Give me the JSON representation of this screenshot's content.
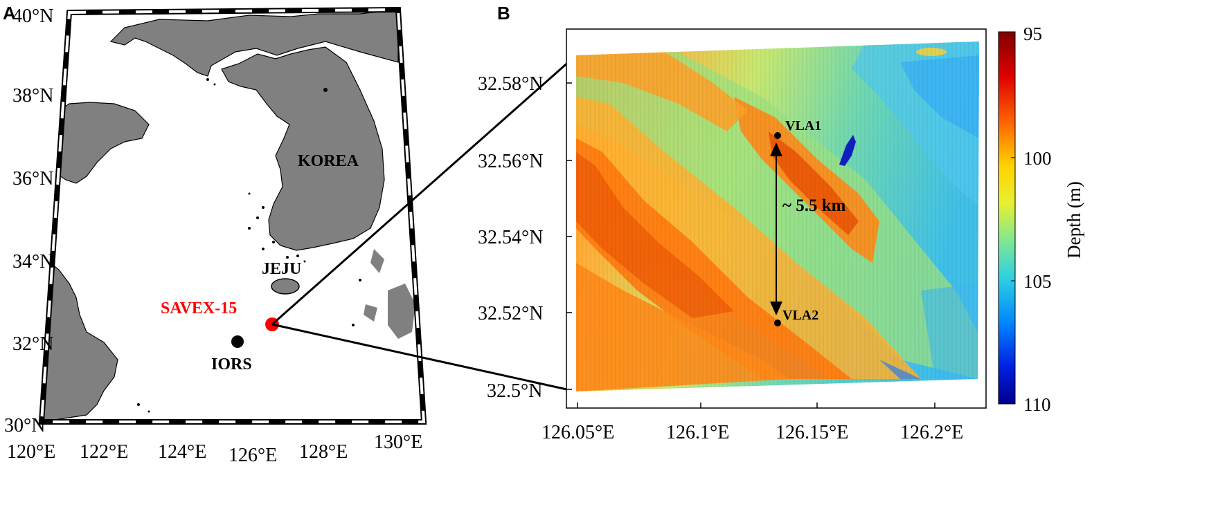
{
  "panels": {
    "a": {
      "letter": "A",
      "lat_ticks": [
        "40°N",
        "38°N",
        "36°N",
        "34°N",
        "32°N",
        "30°N"
      ],
      "lon_ticks": [
        "120°E",
        "122°E",
        "124°E",
        "126°E",
        "128°E",
        "130°E"
      ],
      "labels": {
        "korea": "KOREA",
        "jeju": "JEJU",
        "savex": "SAVEX-15",
        "iors": "IORS"
      }
    },
    "b": {
      "letter": "B",
      "lat_ticks": [
        "32.58°N",
        "32.56°N",
        "32.54°N",
        "32.52°N",
        "32.5°N"
      ],
      "lon_ticks": [
        "126.05°E",
        "126.1°E",
        "126.15°E",
        "126.2°E"
      ],
      "vla1": "VLA1",
      "vla2": "VLA2",
      "distance": "~ 5.5 km",
      "colorbar": {
        "label": "Depth (m)",
        "ticks": [
          "95",
          "100",
          "105",
          "110"
        ]
      }
    }
  },
  "colors": {
    "land": "#808080",
    "savex_marker": "#ff0000",
    "iors_marker": "#000000"
  },
  "icons": {
    "savex": "red-circle-marker",
    "iors": "black-circle-marker",
    "vla": "black-dot-marker"
  }
}
